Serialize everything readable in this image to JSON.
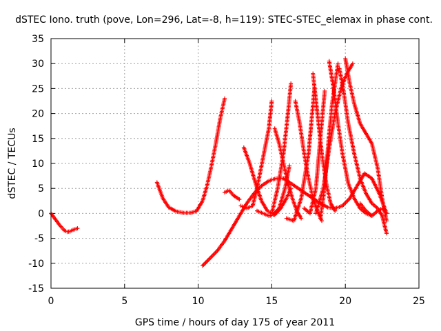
{
  "chart_data": {
    "type": "scatter",
    "title": "dSTEC Iono. truth (pove, Lon=296, Lat=-8, h=119): STEC-STEC_elemax in phase cont.",
    "xlabel": "GPS time / hours of day 175 of year 2011",
    "ylabel": "dSTEC  / TECUs",
    "xlim": [
      0,
      25
    ],
    "ylim": [
      -15,
      35
    ],
    "x_ticks": [
      0,
      5,
      10,
      15,
      20,
      25
    ],
    "y_ticks": [
      -15,
      -10,
      -5,
      0,
      5,
      10,
      15,
      20,
      25,
      30,
      35
    ],
    "grid": true,
    "marker": "+",
    "color": "#ff0000",
    "series": [
      {
        "x": [
          0.0,
          0.3,
          0.6,
          0.9,
          1.1,
          1.3,
          1.5,
          1.8
        ],
        "y": [
          0.0,
          -1.2,
          -2.4,
          -3.4,
          -3.7,
          -3.6,
          -3.3,
          -3.0
        ]
      },
      {
        "x": [
          7.2,
          7.6,
          8.0,
          8.5,
          9.0,
          9.5,
          9.9,
          10.3,
          10.6,
          10.9,
          11.2,
          11.5,
          11.8
        ],
        "y": [
          6.2,
          3.0,
          1.2,
          0.4,
          0.1,
          0.1,
          0.5,
          2.5,
          5.5,
          9.5,
          14.0,
          19.0,
          23.0
        ]
      },
      {
        "x": [
          10.3,
          10.8,
          11.3,
          11.8,
          12.3,
          12.8,
          13.3,
          13.8,
          14.3,
          14.8,
          15.3,
          15.8,
          16.3,
          16.8,
          17.3,
          17.8,
          18.3,
          18.8,
          19.3,
          19.8,
          20.3,
          20.8,
          21.3,
          21.8,
          22.3,
          22.8
        ],
        "y": [
          -10.5,
          -9.0,
          -7.5,
          -5.5,
          -3.0,
          -0.5,
          2.0,
          4.0,
          5.5,
          6.5,
          7.0,
          7.0,
          6.0,
          5.0,
          4.0,
          3.0,
          2.0,
          1.2,
          1.0,
          1.5,
          3.0,
          5.5,
          8.0,
          7.0,
          4.0,
          0.0
        ]
      },
      {
        "x": [
          11.8,
          12.1,
          12.4,
          12.8
        ],
        "y": [
          4.2,
          4.6,
          3.6,
          2.8
        ]
      },
      {
        "x": [
          13.1,
          13.5,
          13.9,
          14.3,
          14.7,
          15.1,
          15.5,
          15.9,
          16.2
        ],
        "y": [
          13.2,
          10.0,
          6.0,
          2.5,
          0.5,
          -0.2,
          1.0,
          5.0,
          9.5
        ]
      },
      {
        "x": [
          12.9,
          13.3,
          13.7,
          14.0,
          14.4,
          14.8,
          15.0
        ],
        "y": [
          1.5,
          1.0,
          1.5,
          5.0,
          11.0,
          17.0,
          22.5
        ]
      },
      {
        "x": [
          14.0,
          14.4,
          14.8,
          15.2,
          15.6,
          16.0,
          16.3
        ],
        "y": [
          0.5,
          0.0,
          -0.5,
          -0.3,
          1.0,
          3.0,
          5.0
        ]
      },
      {
        "x": [
          15.2,
          15.5,
          15.8,
          16.1,
          16.4,
          16.7,
          17.0
        ],
        "y": [
          17.0,
          14.0,
          10.0,
          6.0,
          3.0,
          0.5,
          -1.0
        ]
      },
      {
        "x": [
          15.0,
          15.4,
          15.8,
          16.1,
          16.3
        ],
        "y": [
          0.0,
          5.0,
          12.0,
          20.0,
          26.0
        ]
      },
      {
        "x": [
          16.6,
          16.9,
          17.2,
          17.5,
          17.8,
          18.1,
          18.4
        ],
        "y": [
          22.5,
          18.0,
          12.0,
          7.0,
          3.0,
          0.5,
          -1.5
        ]
      },
      {
        "x": [
          16.0,
          16.5,
          17.0,
          17.5,
          17.9
        ],
        "y": [
          -1.0,
          -1.5,
          3.0,
          12.0,
          25.0
        ]
      },
      {
        "x": [
          17.8,
          18.1,
          18.4,
          18.7,
          19.0,
          19.3
        ],
        "y": [
          28.0,
          20.0,
          12.0,
          6.0,
          2.0,
          0.5
        ]
      },
      {
        "x": [
          17.2,
          17.6,
          18.0,
          18.3,
          18.6
        ],
        "y": [
          1.0,
          0.0,
          5.0,
          15.0,
          24.5
        ]
      },
      {
        "x": [
          18.0,
          18.5,
          18.9,
          19.3,
          19.7,
          20.1,
          20.5
        ],
        "y": [
          0.0,
          5.0,
          13.0,
          20.0,
          25.0,
          28.0,
          30.0
        ]
      },
      {
        "x": [
          18.9,
          19.2,
          19.5,
          19.8,
          20.2,
          20.6,
          21.0,
          21.4,
          21.8
        ],
        "y": [
          30.5,
          25.0,
          18.0,
          12.0,
          6.0,
          3.0,
          1.0,
          0.0,
          -0.5
        ]
      },
      {
        "x": [
          19.6,
          19.9,
          20.2,
          20.6,
          21.0,
          21.4,
          21.8,
          22.2,
          22.5,
          22.8
        ],
        "y": [
          29.0,
          24.0,
          18.0,
          12.0,
          7.0,
          4.0,
          2.0,
          1.0,
          -0.5,
          -4.0
        ]
      },
      {
        "x": [
          20.0,
          20.3,
          20.6,
          21.0,
          21.4,
          21.8,
          22.2,
          22.5,
          22.8
        ],
        "y": [
          31.0,
          26.0,
          22.0,
          18.0,
          16.0,
          14.0,
          9.0,
          3.0,
          -1.5
        ]
      },
      {
        "x": [
          18.3,
          18.5,
          18.7,
          18.9,
          19.1,
          19.3,
          19.5
        ],
        "y": [
          -1.0,
          3.0,
          9.0,
          16.0,
          22.0,
          26.0,
          30.0
        ]
      },
      {
        "x": [
          21.0,
          21.4,
          21.8,
          22.2,
          22.5,
          22.8
        ],
        "y": [
          2.0,
          0.5,
          -0.5,
          0.5,
          1.0,
          0.0
        ]
      }
    ]
  }
}
